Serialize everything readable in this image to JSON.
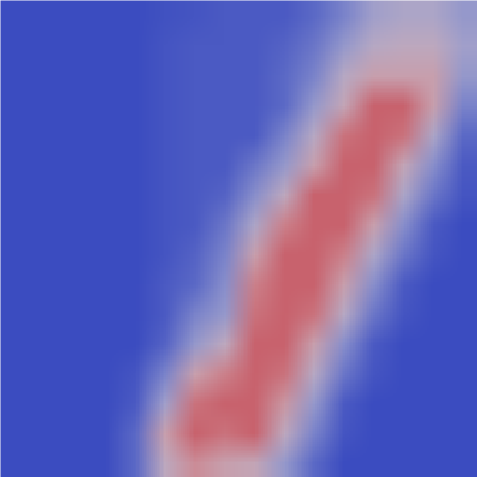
{
  "chart_data": {
    "type": "heatmap",
    "tick_labels": false,
    "color_range": [
      0,
      1
    ],
    "colors": [
      "#3b4cc0",
      "#dddddd",
      "#c0303e"
    ],
    "cells": [
      [
        0,
        0,
        0,
        0,
        0,
        0.02,
        0.03,
        0.05,
        0.05,
        0.05,
        0.1,
        0.2,
        0.35,
        0.4,
        0.4,
        0.3
      ],
      [
        0,
        0,
        0,
        0,
        0,
        0.03,
        0.05,
        0.05,
        0.05,
        0.08,
        0.15,
        0.3,
        0.45,
        0.5,
        0.5,
        0.35
      ],
      [
        0,
        0,
        0,
        0,
        0,
        0.03,
        0.05,
        0.05,
        0.05,
        0.1,
        0.2,
        0.45,
        0.6,
        0.6,
        0.6,
        0.3
      ],
      [
        0,
        0,
        0,
        0,
        0,
        0.03,
        0.05,
        0.05,
        0.05,
        0.1,
        0.3,
        0.55,
        0.85,
        0.85,
        0.6,
        0.2
      ],
      [
        0,
        0,
        0,
        0,
        0,
        0.03,
        0.05,
        0.05,
        0.05,
        0.2,
        0.45,
        0.8,
        0.85,
        0.8,
        0.4,
        0.1
      ],
      [
        0,
        0,
        0,
        0,
        0,
        0.03,
        0.05,
        0.05,
        0.15,
        0.3,
        0.6,
        0.85,
        0.85,
        0.55,
        0.25,
        0.05
      ],
      [
        0,
        0,
        0,
        0,
        0,
        0.03,
        0.05,
        0.08,
        0.25,
        0.5,
        0.85,
        0.85,
        0.8,
        0.4,
        0.15,
        0.03
      ],
      [
        0,
        0,
        0,
        0,
        0,
        0.03,
        0.05,
        0.15,
        0.4,
        0.75,
        0.85,
        0.85,
        0.6,
        0.25,
        0.05,
        0
      ],
      [
        0,
        0,
        0,
        0,
        0,
        0.03,
        0.08,
        0.2,
        0.6,
        0.85,
        0.85,
        0.75,
        0.4,
        0.15,
        0.03,
        0
      ],
      [
        0,
        0,
        0,
        0,
        0,
        0.05,
        0.1,
        0.25,
        0.75,
        0.85,
        0.85,
        0.6,
        0.25,
        0.05,
        0,
        0
      ],
      [
        0,
        0,
        0,
        0,
        0,
        0.05,
        0.2,
        0.3,
        0.8,
        0.85,
        0.8,
        0.45,
        0.15,
        0.03,
        0,
        0
      ],
      [
        0,
        0,
        0,
        0,
        0,
        0.08,
        0.3,
        0.5,
        0.85,
        0.85,
        0.6,
        0.25,
        0.05,
        0,
        0,
        0
      ],
      [
        0,
        0,
        0,
        0,
        0.03,
        0.2,
        0.6,
        0.75,
        0.85,
        0.8,
        0.45,
        0.15,
        0.03,
        0,
        0,
        0
      ],
      [
        0,
        0,
        0,
        0,
        0.05,
        0.35,
        0.8,
        0.85,
        0.85,
        0.65,
        0.3,
        0.05,
        0,
        0,
        0,
        0
      ],
      [
        0,
        0,
        0,
        0,
        0.1,
        0.6,
        0.85,
        0.8,
        0.85,
        0.5,
        0.2,
        0.03,
        0,
        0,
        0,
        0
      ],
      [
        0,
        0,
        0,
        0,
        0.1,
        0.5,
        0.7,
        0.6,
        0.55,
        0.3,
        0.1,
        0,
        0,
        0,
        0,
        0
      ]
    ]
  }
}
